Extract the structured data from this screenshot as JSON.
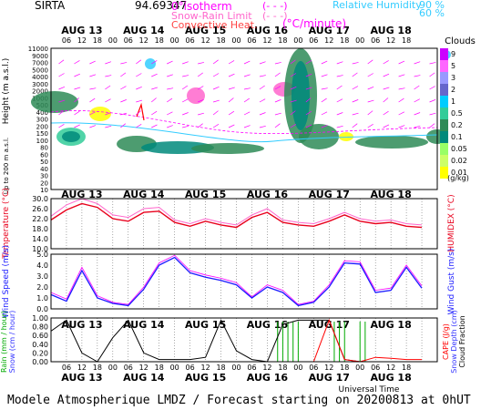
{
  "header": {
    "station": "SIRTA",
    "value": "94.69347",
    "legend_isotherm": "0°isotherm",
    "legend_isotherm_sym": "(- - -)",
    "legend_snowrain": "Snow-Rain Limit",
    "legend_snowrain_sym": "(- - -)",
    "legend_convective": "Convective Heat.",
    "legend_convective_unit": "(°C/minute)",
    "legend_rh": "Relative Humidity",
    "legend_rh_90": "90 %",
    "legend_rh_60": "60 %"
  },
  "footer": {
    "title": "Modele Atmospherique LMDZ / Forecast starting on 20200813 at 0hUT",
    "axis_label": "Universal Time"
  },
  "time_axis": {
    "days": [
      "AUG 13",
      "AUG 14",
      "AUG 15",
      "AUG 16",
      "AUG 17",
      "AUG 18"
    ],
    "hour_labels": [
      "06",
      "12",
      "18",
      "00",
      "06",
      "12",
      "18",
      "00",
      "06",
      "12",
      "18",
      "00",
      "06",
      "12",
      "18",
      "00",
      "06",
      "12",
      "18",
      "00",
      "06",
      "12",
      "18"
    ]
  },
  "colors": {
    "temperature": "#e8001c",
    "humidex": "#ff66cc",
    "wind": "#1a1aff",
    "rain": "#00aa00",
    "snow": "#3333ff",
    "cape": "#ff0000",
    "cloud_cyan": "#33ccff",
    "magenta": "#ff00ff"
  },
  "chart_data": [
    {
      "type": "heatmap",
      "title": "Clouds",
      "ylabel": "Height (m a.s.l.)",
      "ylabel2": "Up to 200 m a.s.l.",
      "yticks": [
        "11000",
        "9000",
        "7000",
        "5000",
        "4000",
        "3000",
        "2000",
        "1000",
        "500",
        "400",
        "300",
        "200",
        "150",
        "100",
        "80",
        "60",
        "50",
        "40",
        "30",
        "20",
        "10"
      ],
      "colorbar_labels": [
        "9",
        "5",
        "3",
        "2",
        "1",
        "0.5",
        "0.2",
        "0.1",
        "0.05",
        "0.02",
        "0.01"
      ],
      "colorbar_unit": "(g/kg)"
    },
    {
      "type": "line",
      "ylabel": "Temperature (°C)",
      "ylabel2": "HUMIDEX (°C)",
      "yticks": [
        "30.0",
        "26.0",
        "22.0",
        "18.0",
        "14.0",
        "10.0"
      ],
      "ylim": [
        10,
        30
      ],
      "x": [
        0,
        6,
        12,
        18,
        24,
        30,
        36,
        42,
        48,
        54,
        60,
        66,
        72,
        78,
        84,
        90,
        96,
        102,
        108,
        114,
        120,
        126,
        132,
        138,
        144
      ],
      "series": [
        {
          "values": [
            21.5,
            25.5,
            28.0,
            26.5,
            22.0,
            21.0,
            24.5,
            25.0,
            20.5,
            19.0,
            21.0,
            19.5,
            18.5,
            22.5,
            24.5,
            20.5,
            19.5,
            19.0,
            21.0,
            23.5,
            21.0,
            20.0,
            20.5,
            19.0,
            18.5
          ]
        },
        {
          "values": [
            23.0,
            27.5,
            30.0,
            28.0,
            23.5,
            22.5,
            26.0,
            26.5,
            21.5,
            20.0,
            22.0,
            20.5,
            19.5,
            23.5,
            26.0,
            21.5,
            20.5,
            20.0,
            22.0,
            24.5,
            22.0,
            21.0,
            21.5,
            20.0,
            19.5
          ]
        }
      ]
    },
    {
      "type": "line",
      "ylabel": "Wind Speed (m/s)",
      "ylabel2": "Wind Gust (m/s)",
      "yticks": [
        "5.0",
        "4.0",
        "3.0",
        "2.0",
        "1.0",
        "0.0"
      ],
      "ylim": [
        0,
        5
      ],
      "x": [
        0,
        6,
        12,
        18,
        24,
        30,
        36,
        42,
        48,
        54,
        60,
        66,
        72,
        78,
        84,
        90,
        96,
        102,
        108,
        114,
        120,
        126,
        132,
        138,
        144
      ],
      "series": [
        {
          "values": [
            1.3,
            0.7,
            3.5,
            1.0,
            0.5,
            0.3,
            1.8,
            4.0,
            4.7,
            3.3,
            2.9,
            2.6,
            2.2,
            1.0,
            2.0,
            1.5,
            0.3,
            0.6,
            2.0,
            4.2,
            4.1,
            1.5,
            1.7,
            3.8,
            1.9
          ]
        },
        {
          "values": [
            1.5,
            0.9,
            3.8,
            1.2,
            0.6,
            0.4,
            2.0,
            4.2,
            4.9,
            3.5,
            3.1,
            2.8,
            2.4,
            1.1,
            2.2,
            1.7,
            0.4,
            0.7,
            2.2,
            4.4,
            4.3,
            1.7,
            1.9,
            4.0,
            2.1
          ]
        }
      ]
    },
    {
      "type": "line",
      "ylabel": "Rain (mm / hour)",
      "ylabel_snow": "Snow (cm / hour)",
      "ylabel2": "CAPE (J/g)",
      "ylabel2_snow": "Snow Depth (cm)",
      "ylabel2_cloud": "Cloud Fraction",
      "yticks": [
        "1.00",
        "0.80",
        "0.60",
        "0.40",
        "0.20",
        "0.00"
      ],
      "ylim": [
        0,
        1
      ],
      "x": [
        0,
        6,
        12,
        18,
        24,
        30,
        36,
        42,
        48,
        54,
        60,
        66,
        72,
        78,
        84,
        90,
        96,
        102,
        108,
        114,
        120,
        126,
        132,
        138,
        144
      ],
      "series": [
        {
          "values": [
            0.7,
            0.95,
            0.2,
            0.0,
            0.55,
            0.95,
            0.2,
            0.05,
            0.05,
            0.05,
            0.1,
            0.95,
            0.25,
            0.05,
            0.0,
            0.85,
            0.95,
            0.95,
            0.95,
            0.05,
            0.0,
            0.0,
            0.0,
            0.0,
            0.0
          ]
        },
        {
          "values": [
            0.0,
            0.0,
            0.0,
            0.0,
            0.0,
            0.0,
            0.0,
            0.0,
            0.0,
            0.0,
            0.0,
            0.0,
            0.0,
            0.0,
            0.0,
            0.0,
            0.0,
            0.0,
            0.95,
            0.05,
            0.0,
            0.1,
            0.08,
            0.05,
            0.05
          ]
        }
      ]
    }
  ]
}
